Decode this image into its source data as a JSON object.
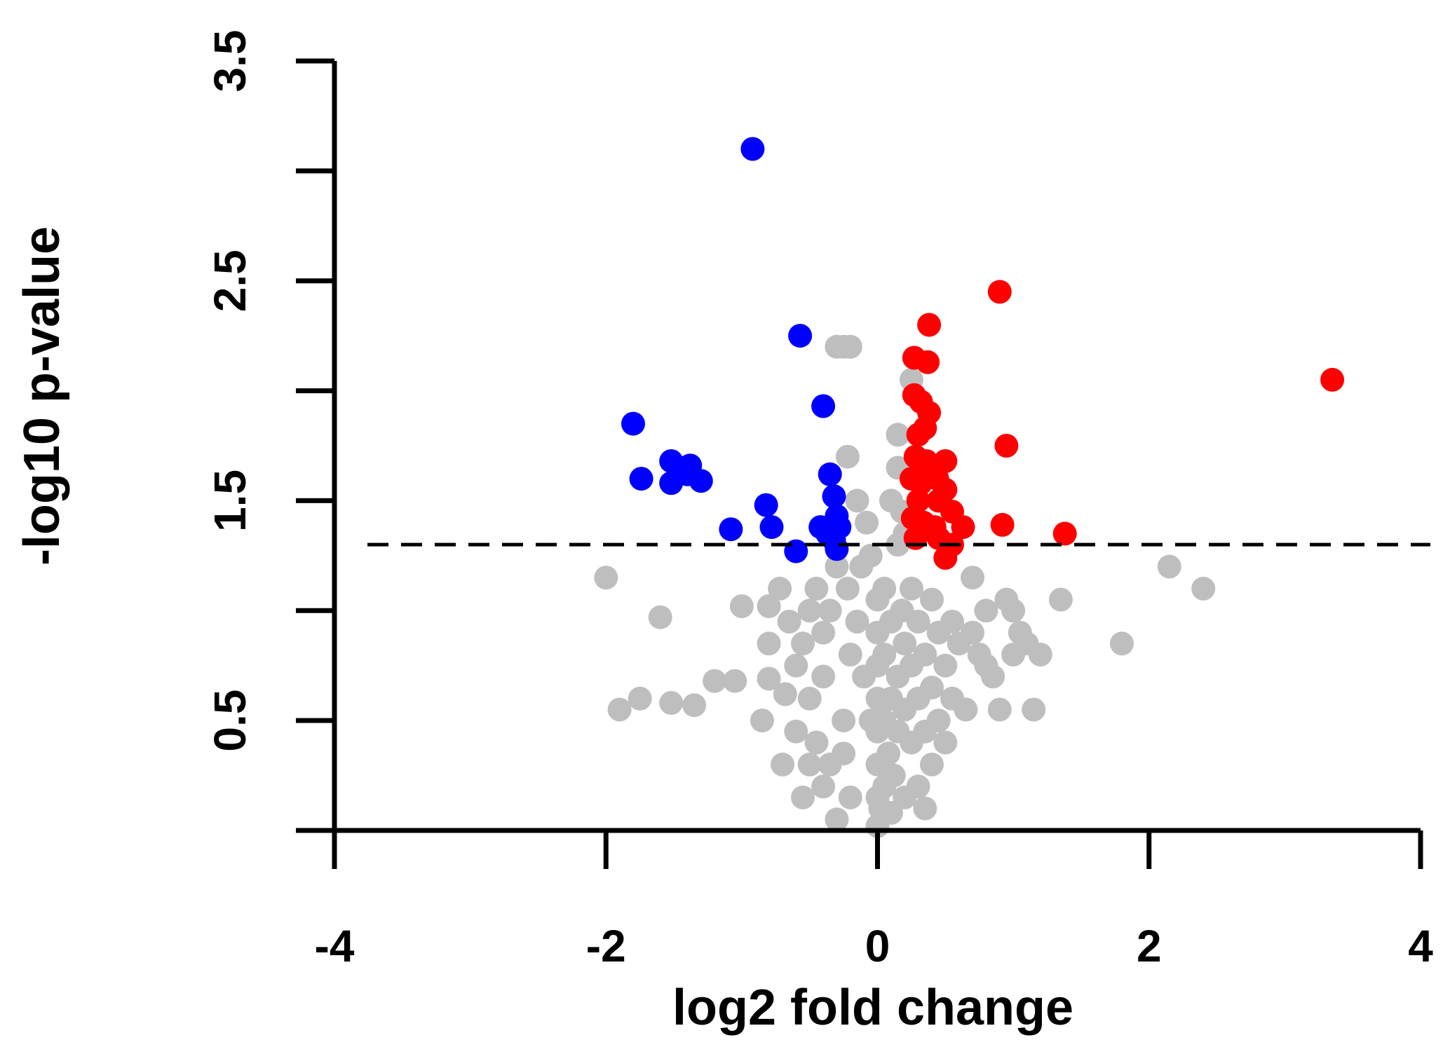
{
  "chart_data": {
    "type": "scatter",
    "xlabel": "log2 fold change",
    "ylabel": "-log10 p-value",
    "xlim": [
      -4,
      4
    ],
    "ylim": [
      0,
      3.5
    ],
    "x_ticks": [
      -4,
      -2,
      0,
      2,
      4
    ],
    "y_ticks": [
      0,
      0.5,
      1,
      1.5,
      2,
      2.5,
      3,
      3.5
    ],
    "x_tick_labels": [
      "-4",
      "-2",
      "0",
      "2",
      "4"
    ],
    "y_tick_labels": [
      "",
      "0.5",
      "",
      "1.5",
      "",
      "2.5",
      "",
      "3.5"
    ],
    "grid": false,
    "threshold": {
      "y": 1.3,
      "style": "dashed"
    },
    "colors": {
      "down": "#0000ff",
      "up": "#ff0000",
      "ns": "#bebebe"
    },
    "series": [
      {
        "key": "ns",
        "color": "#bebebe",
        "points": [
          [
            -2.0,
            1.15
          ],
          [
            -1.6,
            0.97
          ],
          [
            -1.9,
            0.55
          ],
          [
            -1.75,
            0.6
          ],
          [
            -1.52,
            0.58
          ],
          [
            -1.35,
            0.57
          ],
          [
            -1.2,
            0.68
          ],
          [
            -1.05,
            0.68
          ],
          [
            -1.0,
            1.02
          ],
          [
            -0.8,
            0.69
          ],
          [
            -0.8,
            0.85
          ],
          [
            -0.8,
            1.02
          ],
          [
            -0.72,
            1.1
          ],
          [
            -0.85,
            0.5
          ],
          [
            -0.68,
            0.62
          ],
          [
            -0.65,
            0.95
          ],
          [
            -0.6,
            0.75
          ],
          [
            -0.55,
            0.85
          ],
          [
            -0.5,
            0.6
          ],
          [
            -0.5,
            1.0
          ],
          [
            -0.45,
            0.4
          ],
          [
            -0.45,
            1.1
          ],
          [
            -0.4,
            0.7
          ],
          [
            -0.4,
            0.9
          ],
          [
            -0.35,
            1.0
          ],
          [
            -0.3,
            1.2
          ],
          [
            -0.25,
            0.5
          ],
          [
            -0.22,
            1.1
          ],
          [
            -0.2,
            0.8
          ],
          [
            -0.15,
            0.95
          ],
          [
            -0.12,
            1.2
          ],
          [
            -0.1,
            0.7
          ],
          [
            -0.08,
            1.4
          ],
          [
            -0.05,
            0.5
          ],
          [
            -0.05,
            1.25
          ],
          [
            0.0,
            0.15
          ],
          [
            0.0,
            0.3
          ],
          [
            0.0,
            0.45
          ],
          [
            0.0,
            0.6
          ],
          [
            0.0,
            0.75
          ],
          [
            0.0,
            0.9
          ],
          [
            0.0,
            1.05
          ],
          [
            0.02,
            0.1
          ],
          [
            0.05,
            0.2
          ],
          [
            0.05,
            0.5
          ],
          [
            0.05,
            0.8
          ],
          [
            0.05,
            1.1
          ],
          [
            0.08,
            0.35
          ],
          [
            0.1,
            0.6
          ],
          [
            0.1,
            0.95
          ],
          [
            0.12,
            0.25
          ],
          [
            0.15,
            0.45
          ],
          [
            0.15,
            0.7
          ],
          [
            0.15,
            1.3
          ],
          [
            0.18,
            1.0
          ],
          [
            0.2,
            0.15
          ],
          [
            0.2,
            0.55
          ],
          [
            0.2,
            0.85
          ],
          [
            0.25,
            0.4
          ],
          [
            0.25,
            0.75
          ],
          [
            0.25,
            1.1
          ],
          [
            0.3,
            0.2
          ],
          [
            0.3,
            0.6
          ],
          [
            0.3,
            0.95
          ],
          [
            0.35,
            0.45
          ],
          [
            0.35,
            0.8
          ],
          [
            0.4,
            0.3
          ],
          [
            0.4,
            0.65
          ],
          [
            0.4,
            1.05
          ],
          [
            0.45,
            0.5
          ],
          [
            0.45,
            0.9
          ],
          [
            0.5,
            0.4
          ],
          [
            0.5,
            0.75
          ],
          [
            0.55,
            0.6
          ],
          [
            0.55,
            0.95
          ],
          [
            0.6,
            0.85
          ],
          [
            0.65,
            0.55
          ],
          [
            0.7,
            0.9
          ],
          [
            0.7,
            1.15
          ],
          [
            0.75,
            0.8
          ],
          [
            0.8,
            0.75
          ],
          [
            0.85,
            0.7
          ],
          [
            0.8,
            1.0
          ],
          [
            0.9,
            0.55
          ],
          [
            0.95,
            1.05
          ],
          [
            1.0,
            1.0
          ],
          [
            1.0,
            0.8
          ],
          [
            1.05,
            0.9
          ],
          [
            1.1,
            0.85
          ],
          [
            1.15,
            0.55
          ],
          [
            1.2,
            0.8
          ],
          [
            1.35,
            1.05
          ],
          [
            1.8,
            0.85
          ],
          [
            2.15,
            1.2
          ],
          [
            2.4,
            1.1
          ],
          [
            -0.3,
            2.2
          ],
          [
            -0.25,
            2.2
          ],
          [
            -0.2,
            2.2
          ],
          [
            -0.22,
            1.7
          ],
          [
            -0.15,
            1.5
          ],
          [
            0.25,
            2.05
          ],
          [
            0.15,
            1.8
          ],
          [
            0.15,
            1.65
          ],
          [
            0.18,
            1.45
          ],
          [
            0.2,
            1.35
          ],
          [
            0.1,
            1.5
          ],
          [
            -0.3,
            0.05
          ],
          [
            -0.2,
            0.15
          ],
          [
            -0.4,
            0.2
          ],
          [
            0.35,
            0.1
          ],
          [
            0.0,
            0.02
          ],
          [
            0.1,
            0.08
          ],
          [
            -0.6,
            0.45
          ],
          [
            -0.5,
            0.3
          ],
          [
            -0.55,
            0.15
          ],
          [
            -0.7,
            0.3
          ],
          [
            -0.35,
            0.3
          ],
          [
            -0.25,
            0.35
          ]
        ]
      },
      {
        "key": "down",
        "color": "#0000ff",
        "points": [
          [
            -0.92,
            3.1
          ],
          [
            -0.57,
            2.25
          ],
          [
            -0.4,
            1.93
          ],
          [
            -1.8,
            1.85
          ],
          [
            -1.74,
            1.6
          ],
          [
            -1.52,
            1.68
          ],
          [
            -1.52,
            1.58
          ],
          [
            -1.45,
            1.65
          ],
          [
            -1.4,
            1.62
          ],
          [
            -1.38,
            1.66
          ],
          [
            -1.3,
            1.59
          ],
          [
            -0.82,
            1.48
          ],
          [
            -0.78,
            1.38
          ],
          [
            -1.08,
            1.37
          ],
          [
            -0.6,
            1.27
          ],
          [
            -0.35,
            1.62
          ],
          [
            -0.32,
            1.52
          ],
          [
            -0.3,
            1.43
          ],
          [
            -0.42,
            1.38
          ],
          [
            -0.37,
            1.35
          ],
          [
            -0.32,
            1.32
          ],
          [
            -0.28,
            1.38
          ],
          [
            -0.3,
            1.28
          ]
        ]
      },
      {
        "key": "up",
        "color": "#ff0000",
        "points": [
          [
            0.9,
            2.45
          ],
          [
            0.38,
            2.3
          ],
          [
            0.27,
            2.15
          ],
          [
            0.37,
            2.13
          ],
          [
            3.35,
            2.05
          ],
          [
            0.27,
            1.98
          ],
          [
            0.32,
            1.95
          ],
          [
            0.38,
            1.9
          ],
          [
            0.35,
            1.83
          ],
          [
            0.3,
            1.8
          ],
          [
            0.95,
            1.75
          ],
          [
            0.28,
            1.7
          ],
          [
            0.36,
            1.68
          ],
          [
            0.5,
            1.68
          ],
          [
            0.25,
            1.6
          ],
          [
            0.32,
            1.58
          ],
          [
            0.44,
            1.6
          ],
          [
            0.5,
            1.55
          ],
          [
            0.3,
            1.5
          ],
          [
            0.45,
            1.5
          ],
          [
            0.55,
            1.45
          ],
          [
            0.26,
            1.42
          ],
          [
            0.34,
            1.4
          ],
          [
            0.42,
            1.38
          ],
          [
            0.63,
            1.38
          ],
          [
            0.92,
            1.39
          ],
          [
            1.38,
            1.35
          ],
          [
            0.28,
            1.33
          ],
          [
            0.45,
            1.33
          ],
          [
            0.55,
            1.3
          ],
          [
            0.5,
            1.24
          ]
        ]
      }
    ]
  }
}
